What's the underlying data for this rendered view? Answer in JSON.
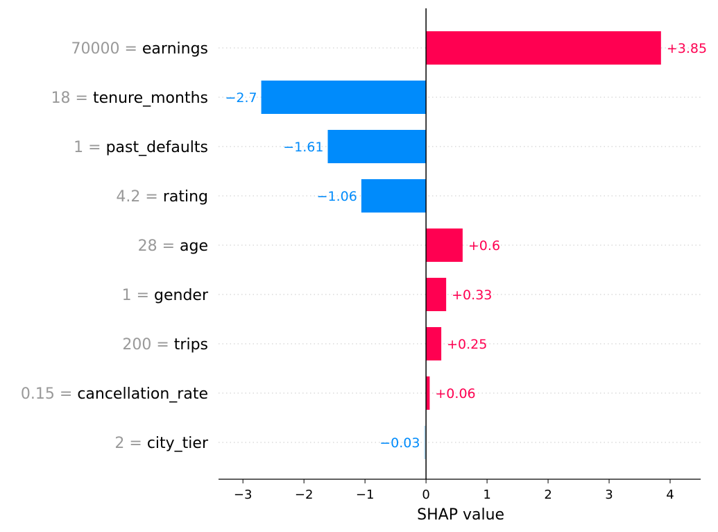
{
  "chart_data": {
    "type": "bar",
    "orientation": "horizontal",
    "xlabel": "SHAP value",
    "xlim": [
      -3.4,
      4.5
    ],
    "xticks": [
      -3,
      -2,
      -1,
      0,
      1,
      2,
      3,
      4
    ],
    "xtick_labels": [
      "−3",
      "−2",
      "−1",
      "0",
      "1",
      "2",
      "3",
      "4"
    ],
    "grid": "dotted horizontal row guides",
    "colors": {
      "positive": "#ff0051",
      "negative": "#008bfb",
      "negative_small": "#b9dcf0",
      "feature_value": "#999999",
      "feature_name": "#000000"
    },
    "features": [
      {
        "value_text": "70000",
        "name": "earnings",
        "shap": 3.85,
        "label": "+3.85"
      },
      {
        "value_text": "18",
        "name": "tenure_months",
        "shap": -2.7,
        "label": "−2.7"
      },
      {
        "value_text": "1",
        "name": "past_defaults",
        "shap": -1.61,
        "label": "−1.61"
      },
      {
        "value_text": "4.2",
        "name": "rating",
        "shap": -1.06,
        "label": "−1.06"
      },
      {
        "value_text": "28",
        "name": "age",
        "shap": 0.6,
        "label": "+0.6"
      },
      {
        "value_text": "1",
        "name": "gender",
        "shap": 0.33,
        "label": "+0.33"
      },
      {
        "value_text": "200",
        "name": "trips",
        "shap": 0.25,
        "label": "+0.25"
      },
      {
        "value_text": "0.15",
        "name": "cancellation_rate",
        "shap": 0.06,
        "label": "+0.06"
      },
      {
        "value_text": "2",
        "name": "city_tier",
        "shap": -0.03,
        "label": "−0.03"
      }
    ]
  }
}
